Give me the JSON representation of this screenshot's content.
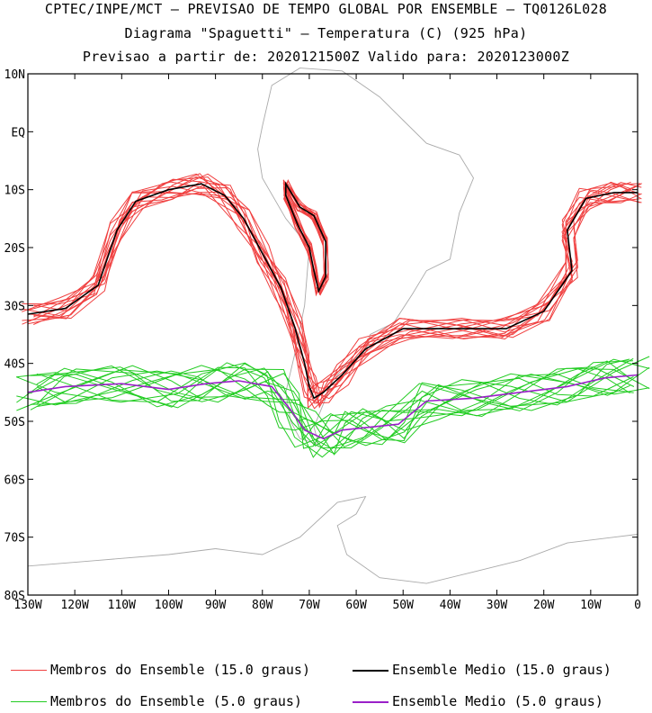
{
  "header": {
    "line1": "CPTEC/INPE/MCT — PREVISAO DE TEMPO GLOBAL POR ENSEMBLE — TQ0126L028",
    "line2": "Diagrama \"Spaguetti\" — Temperatura (C) (925 hPa)",
    "line3": "Previsao a partir de: 2020121500Z  Valido para: 2020123000Z"
  },
  "colors": {
    "members_15": "#f04040",
    "mean_15": "#000000",
    "members_5": "#22cc22",
    "mean_5": "#9a20c8",
    "coast": "#aaaaaa",
    "frame": "#000000"
  },
  "axes": {
    "lat_ticks": [
      "10N",
      "EQ",
      "10S",
      "20S",
      "30S",
      "40S",
      "50S",
      "60S",
      "70S",
      "80S"
    ],
    "lon_ticks": [
      "130W",
      "120W",
      "110W",
      "100W",
      "90W",
      "80W",
      "70W",
      "60W",
      "50W",
      "40W",
      "30W",
      "20W",
      "10W",
      "0"
    ]
  },
  "map_extent": {
    "lon_min": -130,
    "lon_max": 0,
    "lat_min": -80,
    "lat_max": 10
  },
  "legend": [
    {
      "label": "Membros do Ensemble (15.0 graus)",
      "color_key": "members_15",
      "width": 1
    },
    {
      "label": "Ensemble Medio (15.0 graus)",
      "color_key": "mean_15",
      "width": 1.6
    },
    {
      "label": "Membros do Ensemble (5.0 graus)",
      "color_key": "members_5",
      "width": 1
    },
    {
      "label": "Ensemble Medio (5.0 graus)",
      "color_key": "mean_5",
      "width": 1.6
    }
  ],
  "isolines": {
    "mean_15": [
      [
        -130,
        -31.5
      ],
      [
        -122,
        -30.5
      ],
      [
        -115,
        -26.5
      ],
      [
        -111,
        -17
      ],
      [
        -107,
        -12
      ],
      [
        -100,
        -10
      ],
      [
        -93,
        -9
      ],
      [
        -88,
        -11
      ],
      [
        -84,
        -15
      ],
      [
        -80,
        -21
      ],
      [
        -76,
        -27
      ],
      [
        -73,
        -34
      ],
      [
        -71,
        -40
      ],
      [
        -70,
        -44
      ],
      [
        -69,
        -46
      ],
      [
        -67,
        -45
      ],
      [
        -63,
        -42
      ],
      [
        -58,
        -37.5
      ],
      [
        -50,
        -34
      ],
      [
        -38,
        -34
      ],
      [
        -28,
        -34
      ],
      [
        -20,
        -31
      ],
      [
        -14,
        -24
      ],
      [
        -15,
        -17
      ],
      [
        -11,
        -11.5
      ],
      [
        -5,
        -10.5
      ],
      [
        0,
        -10.5
      ]
    ],
    "mean_15_andes": [
      [
        -75,
        -9
      ],
      [
        -72,
        -13
      ],
      [
        -69,
        -14.5
      ],
      [
        -66.5,
        -19
      ],
      [
        -66.5,
        -25
      ],
      [
        -68,
        -27.5
      ],
      [
        -69,
        -24
      ],
      [
        -70,
        -20
      ],
      [
        -72.5,
        -16
      ],
      [
        -75,
        -11
      ]
    ],
    "mean_5": [
      [
        -130,
        -45
      ],
      [
        -122,
        -44
      ],
      [
        -110,
        -43.5
      ],
      [
        -100,
        -44.5
      ],
      [
        -92,
        -43.5
      ],
      [
        -85,
        -43
      ],
      [
        -78,
        -44
      ],
      [
        -74,
        -48
      ],
      [
        -71,
        -51.5
      ],
      [
        -67,
        -53
      ],
      [
        -63,
        -51.5
      ],
      [
        -57,
        -51
      ],
      [
        -51,
        -50.5
      ],
      [
        -45,
        -46.5
      ],
      [
        -35,
        -46
      ],
      [
        -25,
        -45
      ],
      [
        -15,
        -44
      ],
      [
        -7,
        -42.5
      ],
      [
        0,
        -42
      ]
    ]
  }
}
